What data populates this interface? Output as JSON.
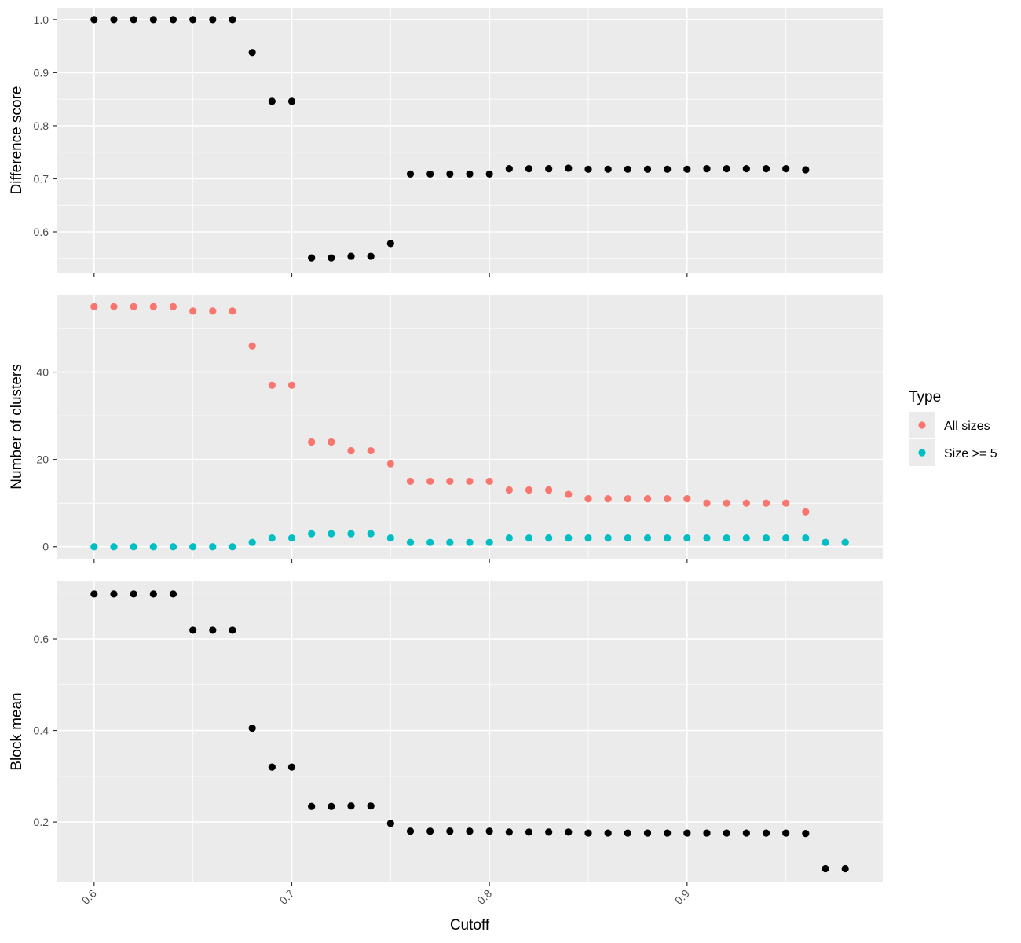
{
  "chart_data": {
    "type": "scatter",
    "xlabel": "Cutoff",
    "xlim": [
      0.581,
      0.999
    ],
    "x_ticks": [
      0.6,
      0.7,
      0.8,
      0.9
    ],
    "x_tick_labels": [
      "0.6",
      "0.7",
      "0.8",
      "0.9"
    ],
    "grid": true,
    "legend_position": "right",
    "legend": {
      "title": "Type",
      "entries": [
        {
          "label": "All sizes",
          "color": "#F8766D"
        },
        {
          "label": "Size >= 5",
          "color": "#00BFC4"
        }
      ]
    },
    "panels": [
      {
        "ylabel": "Difference score",
        "ylim": [
          0.523,
          1.022
        ],
        "y_ticks": [
          0.6,
          0.7,
          0.8,
          0.9,
          1.0
        ],
        "y_tick_labels": [
          "0.6",
          "0.7",
          "0.8",
          "0.9",
          "1.0"
        ],
        "series": [
          {
            "color": "#000000",
            "x": [
              0.6,
              0.61,
              0.62,
              0.63,
              0.64,
              0.65,
              0.66,
              0.67,
              0.68,
              0.69,
              0.7,
              0.71,
              0.72,
              0.73,
              0.74,
              0.75,
              0.76,
              0.77,
              0.78,
              0.79,
              0.8,
              0.81,
              0.82,
              0.83,
              0.84,
              0.85,
              0.86,
              0.87,
              0.88,
              0.89,
              0.9,
              0.91,
              0.92,
              0.93,
              0.94,
              0.95,
              0.96
            ],
            "y": [
              1.0,
              1.0,
              1.0,
              1.0,
              1.0,
              1.0,
              1.0,
              1.0,
              0.938,
              0.846,
              0.846,
              0.551,
              0.551,
              0.554,
              0.554,
              0.578,
              0.709,
              0.709,
              0.709,
              0.709,
              0.709,
              0.719,
              0.719,
              0.719,
              0.72,
              0.718,
              0.718,
              0.718,
              0.718,
              0.718,
              0.718,
              0.719,
              0.719,
              0.719,
              0.719,
              0.719,
              0.717
            ]
          }
        ]
      },
      {
        "ylabel": "Number of clusters",
        "ylim": [
          -2.75,
          57.75
        ],
        "y_ticks": [
          0,
          20,
          40
        ],
        "y_tick_labels": [
          "0",
          "20",
          "40"
        ],
        "series": [
          {
            "name": "All sizes",
            "color": "#F8766D",
            "x": [
              0.6,
              0.61,
              0.62,
              0.63,
              0.64,
              0.65,
              0.66,
              0.67,
              0.68,
              0.69,
              0.7,
              0.71,
              0.72,
              0.73,
              0.74,
              0.75,
              0.76,
              0.77,
              0.78,
              0.79,
              0.8,
              0.81,
              0.82,
              0.83,
              0.84,
              0.85,
              0.86,
              0.87,
              0.88,
              0.89,
              0.9,
              0.91,
              0.92,
              0.93,
              0.94,
              0.95,
              0.96,
              0.97,
              0.98
            ],
            "y": [
              55,
              55,
              55,
              55,
              55,
              54,
              54,
              54,
              46,
              37,
              37,
              24,
              24,
              22,
              22,
              19,
              15,
              15,
              15,
              15,
              15,
              13,
              13,
              13,
              12,
              11,
              11,
              11,
              11,
              11,
              11,
              10,
              10,
              10,
              10,
              10,
              8,
              1,
              1
            ]
          },
          {
            "name": "Size >= 5",
            "color": "#00BFC4",
            "x": [
              0.6,
              0.61,
              0.62,
              0.63,
              0.64,
              0.65,
              0.66,
              0.67,
              0.68,
              0.69,
              0.7,
              0.71,
              0.72,
              0.73,
              0.74,
              0.75,
              0.76,
              0.77,
              0.78,
              0.79,
              0.8,
              0.81,
              0.82,
              0.83,
              0.84,
              0.85,
              0.86,
              0.87,
              0.88,
              0.89,
              0.9,
              0.91,
              0.92,
              0.93,
              0.94,
              0.95,
              0.96,
              0.97,
              0.98
            ],
            "y": [
              0,
              0,
              0,
              0,
              0,
              0,
              0,
              0,
              1,
              2,
              2,
              3,
              3,
              3,
              3,
              2,
              1,
              1,
              1,
              1,
              1,
              2,
              2,
              2,
              2,
              2,
              2,
              2,
              2,
              2,
              2,
              2,
              2,
              2,
              2,
              2,
              2,
              1,
              1
            ]
          }
        ]
      },
      {
        "ylabel": "Block mean",
        "ylim": [
          0.068,
          0.727
        ],
        "y_ticks": [
          0.2,
          0.4,
          0.6
        ],
        "y_tick_labels": [
          "0.2",
          "0.4",
          "0.6"
        ],
        "series": [
          {
            "color": "#000000",
            "x": [
              0.6,
              0.61,
              0.62,
              0.63,
              0.64,
              0.65,
              0.66,
              0.67,
              0.68,
              0.69,
              0.7,
              0.71,
              0.72,
              0.73,
              0.74,
              0.75,
              0.76,
              0.77,
              0.78,
              0.79,
              0.8,
              0.81,
              0.82,
              0.83,
              0.84,
              0.85,
              0.86,
              0.87,
              0.88,
              0.89,
              0.9,
              0.91,
              0.92,
              0.93,
              0.94,
              0.95,
              0.96,
              0.97,
              0.98
            ],
            "y": [
              0.698,
              0.698,
              0.698,
              0.698,
              0.698,
              0.619,
              0.619,
              0.619,
              0.405,
              0.32,
              0.32,
              0.234,
              0.234,
              0.235,
              0.235,
              0.197,
              0.18,
              0.18,
              0.18,
              0.18,
              0.18,
              0.178,
              0.178,
              0.178,
              0.178,
              0.176,
              0.176,
              0.176,
              0.176,
              0.176,
              0.176,
              0.176,
              0.176,
              0.176,
              0.176,
              0.176,
              0.175,
              0.098,
              0.098
            ]
          }
        ]
      }
    ]
  }
}
